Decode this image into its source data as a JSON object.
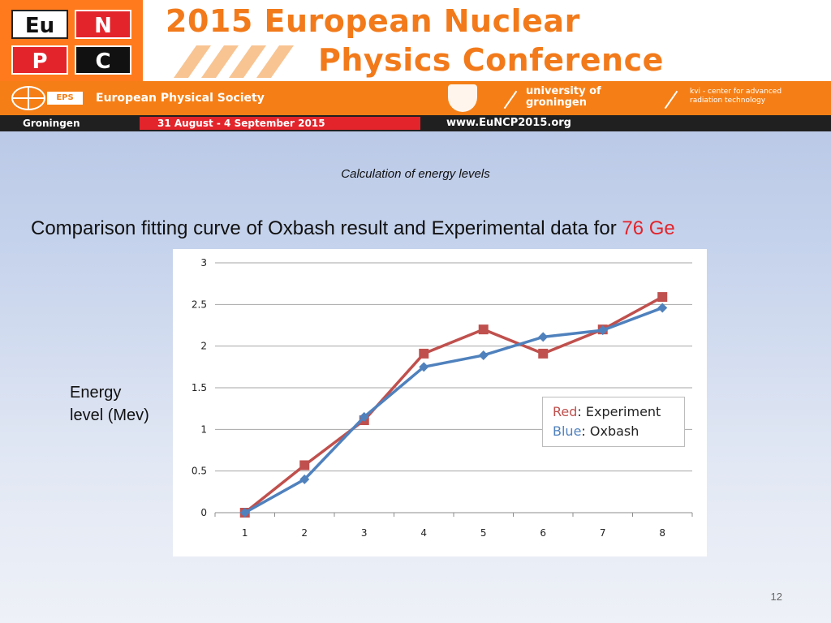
{
  "banner": {
    "logo_tiles": [
      "Eu",
      "N",
      "P",
      "C"
    ],
    "title_line1": "2015 European Nuclear",
    "title_line2": "Physics Conference",
    "eps_badge": "EPS",
    "society": "European Physical Society",
    "university_line1": "university of",
    "university_line2": "groningen",
    "kvi_line1": "kvi - center for advanced",
    "kvi_line2": "radiation technology",
    "location": "Groningen",
    "dates": "31 August - 4 September 2015",
    "website": "www.EuNCP2015.org",
    "colors": {
      "orange": "#f57f16",
      "red": "#e3242b",
      "black": "#202020"
    }
  },
  "slide": {
    "subtitle": "Calculation of energy levels",
    "heading_text": "Comparison fitting curve of Oxbash result and Experimental data for ",
    "heading_highlight": "76 Ge",
    "ylabel_line1": "Energy",
    "ylabel_line2": "level  (Mev)",
    "page_number": "12"
  },
  "chart_data": {
    "type": "line",
    "title": "",
    "xlabel": "",
    "ylabel": "",
    "x": [
      1,
      2,
      3,
      4,
      5,
      6,
      7,
      8
    ],
    "ylim": [
      0,
      3
    ],
    "yticks": [
      0,
      0.5,
      1,
      1.5,
      2,
      2.5,
      3
    ],
    "grid": true,
    "legend_position": "center-right",
    "series": [
      {
        "name": "Experiment",
        "legend_key": "Red",
        "legend_text": ": Experiment",
        "color": "#c0504d",
        "marker": "square",
        "values": [
          0,
          0.57,
          1.11,
          1.91,
          2.2,
          1.91,
          2.2,
          2.59
        ]
      },
      {
        "name": "Oxbash",
        "legend_key": "Blue",
        "legend_text": ": Oxbash",
        "color": "#4f81bd",
        "marker": "diamond",
        "values": [
          0,
          0.4,
          1.15,
          1.75,
          1.89,
          2.11,
          2.19,
          2.46
        ]
      }
    ]
  }
}
